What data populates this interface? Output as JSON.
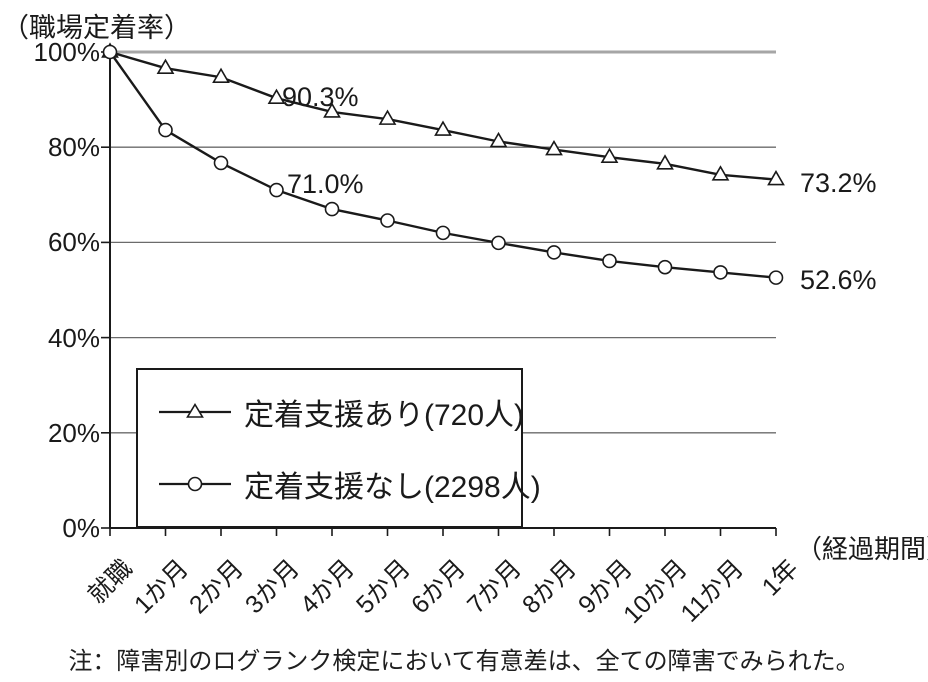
{
  "chart_data": {
    "type": "line",
    "title": "",
    "ylabel": "（職場定着率）",
    "xlabel": "（経過期間）",
    "categories": [
      "就職",
      "1か月",
      "2か月",
      "3か月",
      "4か月",
      "5か月",
      "6か月",
      "7か月",
      "8か月",
      "9か月",
      "10か月",
      "11か月",
      "1年"
    ],
    "series": [
      {
        "name": "定着支援あり(720人)",
        "marker": "triangle",
        "values": [
          100,
          96.6,
          94.7,
          90.3,
          87.4,
          85.9,
          83.6,
          81.2,
          79.5,
          77.9,
          76.5,
          74.2,
          73.2
        ]
      },
      {
        "name": "定着支援なし(2298人)",
        "marker": "circle",
        "values": [
          100,
          83.6,
          76.7,
          71.0,
          67.0,
          64.6,
          62.0,
          59.9,
          57.9,
          56.1,
          54.8,
          53.7,
          52.6
        ]
      }
    ],
    "ylim": [
      0,
      100
    ],
    "yticks": [
      0,
      20,
      40,
      60,
      80,
      100
    ],
    "ytick_suffix": "%",
    "grid": true,
    "legend_position": "inside-bottom-left",
    "annotations": [
      {
        "text": "90.3%",
        "series": 0,
        "index": 3
      },
      {
        "text": "71.0%",
        "series": 1,
        "index": 3
      },
      {
        "text": "73.2%",
        "series": 0,
        "index": 12
      },
      {
        "text": "52.6%",
        "series": 1,
        "index": 12
      }
    ],
    "colors": {
      "line": "#1a1a1a",
      "axis": "#1a1a1a",
      "gridline": "#6b6b6b",
      "top_gridline": "#a6a6a6",
      "marker_fill": "#ffffff",
      "text": "#1a1a1a"
    }
  },
  "note": "注：障害別のログランク検定において有意差は、全ての障害でみられた。"
}
